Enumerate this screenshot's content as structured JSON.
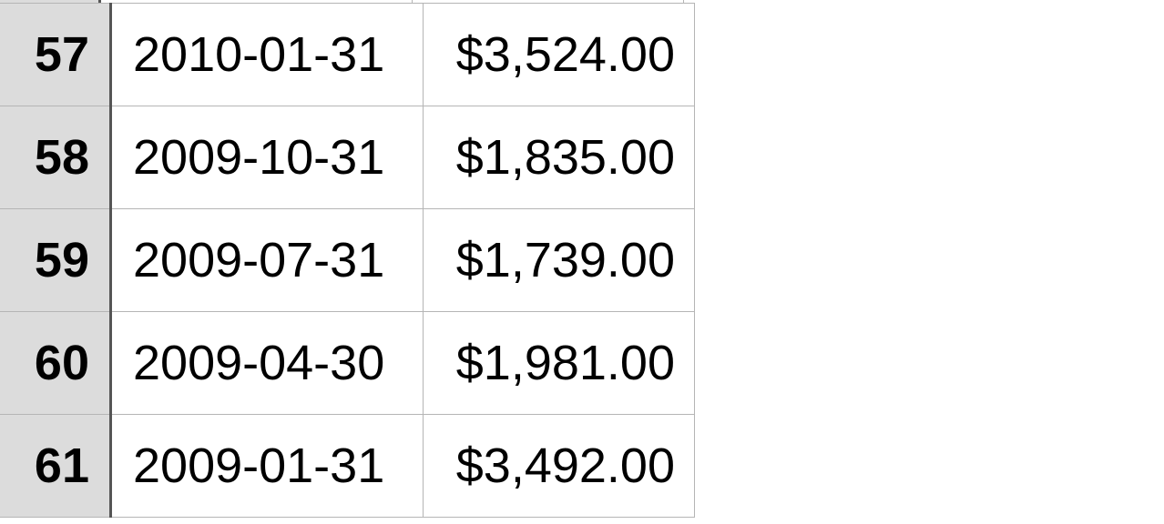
{
  "spreadsheet": {
    "rows": [
      {
        "row_number": "57",
        "date": "2010-01-31",
        "amount": "$3,524.00"
      },
      {
        "row_number": "58",
        "date": "2009-10-31",
        "amount": "$1,835.00"
      },
      {
        "row_number": "59",
        "date": "2009-07-31",
        "amount": "$1,739.00"
      },
      {
        "row_number": "60",
        "date": "2009-04-30",
        "amount": "$1,981.00"
      },
      {
        "row_number": "61",
        "date": "2009-01-31",
        "amount": "$3,492.00"
      }
    ]
  }
}
